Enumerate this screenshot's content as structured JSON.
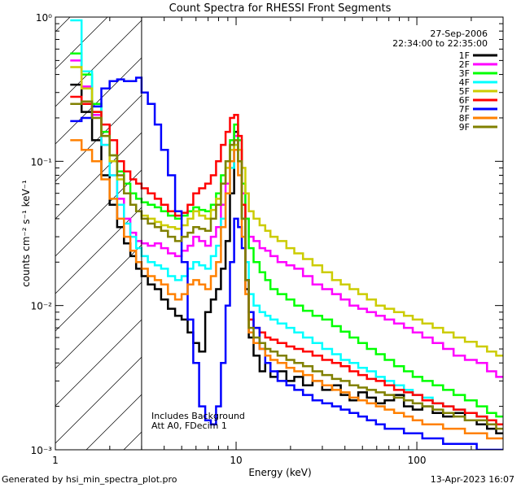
{
  "chart_data": {
    "type": "line",
    "title": "Count Spectra for RHESSI Front Segments",
    "xlabel": "Energy (keV)",
    "ylabel": "counts cm⁻² s⁻¹ keV⁻¹",
    "xscale": "log",
    "yscale": "log",
    "xlim": [
      1,
      300
    ],
    "ylim": [
      0.001,
      1
    ],
    "x_ticks": [
      "1",
      "10",
      "100"
    ],
    "y_ticks": [
      "10⁻³",
      "10⁻²",
      "10⁻¹",
      "10⁰"
    ],
    "date": "27-Sep-2006",
    "time_range": "22:34:00 to 22:35:00",
    "annotations": [
      "Includes Background",
      "Att A0, FDecim 1"
    ],
    "attenuator_region_max_keV": 3,
    "legend_position": "top-right",
    "series": [
      {
        "name": "1F",
        "color": "#000000",
        "x": [
          1.3,
          1.5,
          1.7,
          1.9,
          2.1,
          2.3,
          2.5,
          2.7,
          2.9,
          3.1,
          3.4,
          3.7,
          4.0,
          4.4,
          4.8,
          5.2,
          5.6,
          6.0,
          6.5,
          7.0,
          7.5,
          8.0,
          8.5,
          9.0,
          9.5,
          10.0,
          10.5,
          11.0,
          11.5,
          12.0,
          13.0,
          14.0,
          15.0,
          16.0,
          18.0,
          20.0,
          22.0,
          25.0,
          28.0,
          32.0,
          36.0,
          40.0,
          45.0,
          50.0,
          56.0,
          63.0,
          70.0,
          80.0,
          90.0,
          100.0,
          115.0,
          130.0,
          150.0,
          170.0,
          200.0,
          230.0,
          260.0,
          290.0
        ],
        "y": [
          0.34,
          0.22,
          0.14,
          0.08,
          0.05,
          0.035,
          0.027,
          0.022,
          0.018,
          0.016,
          0.014,
          0.013,
          0.011,
          0.0095,
          0.0085,
          0.008,
          0.0065,
          0.0055,
          0.0048,
          0.009,
          0.011,
          0.013,
          0.018,
          0.028,
          0.06,
          0.16,
          0.12,
          0.04,
          0.013,
          0.006,
          0.0045,
          0.0035,
          0.004,
          0.0032,
          0.0035,
          0.003,
          0.0032,
          0.0028,
          0.003,
          0.0026,
          0.0028,
          0.0024,
          0.0022,
          0.0025,
          0.0023,
          0.0021,
          0.0022,
          0.0024,
          0.002,
          0.0019,
          0.002,
          0.0018,
          0.0017,
          0.0018,
          0.0016,
          0.0015,
          0.0014,
          0.0013
        ]
      },
      {
        "name": "2F",
        "color": "#ff00ff",
        "x": [
          1.3,
          1.5,
          1.7,
          1.9,
          2.1,
          2.3,
          2.5,
          2.7,
          2.9,
          3.1,
          3.4,
          3.7,
          4.0,
          4.4,
          4.8,
          5.2,
          5.6,
          6.0,
          6.5,
          7.0,
          7.5,
          8.0,
          8.5,
          9.0,
          9.5,
          10.0,
          10.5,
          11.0,
          11.5,
          12.0,
          13.0,
          14.0,
          15.0,
          16.0,
          18.0,
          20.0,
          22.0,
          25.0,
          28.0,
          32.0,
          36.0,
          40.0,
          45.0,
          50.0,
          56.0,
          63.0,
          70.0,
          80.0,
          90.0,
          100.0,
          115.0,
          130.0,
          150.0,
          170.0,
          200.0,
          230.0,
          260.0,
          290.0
        ],
        "y": [
          0.5,
          0.33,
          0.21,
          0.13,
          0.08,
          0.055,
          0.04,
          0.032,
          0.028,
          0.027,
          0.026,
          0.027,
          0.025,
          0.023,
          0.022,
          0.024,
          0.026,
          0.03,
          0.028,
          0.026,
          0.03,
          0.035,
          0.05,
          0.07,
          0.1,
          0.15,
          0.12,
          0.06,
          0.04,
          0.03,
          0.028,
          0.025,
          0.024,
          0.022,
          0.02,
          0.019,
          0.018,
          0.016,
          0.014,
          0.013,
          0.012,
          0.011,
          0.01,
          0.0095,
          0.009,
          0.0085,
          0.008,
          0.0075,
          0.007,
          0.0065,
          0.006,
          0.0055,
          0.005,
          0.0045,
          0.0042,
          0.004,
          0.0035,
          0.0032
        ]
      },
      {
        "name": "3F",
        "color": "#00ff00",
        "x": [
          1.3,
          1.5,
          1.7,
          1.9,
          2.1,
          2.3,
          2.5,
          2.7,
          2.9,
          3.1,
          3.4,
          3.7,
          4.0,
          4.4,
          4.8,
          5.2,
          5.6,
          6.0,
          6.5,
          7.0,
          7.5,
          8.0,
          8.5,
          9.0,
          9.5,
          10.0,
          10.5,
          11.0,
          11.5,
          12.0,
          13.0,
          14.0,
          15.0,
          16.0,
          18.0,
          20.0,
          22.0,
          25.0,
          28.0,
          32.0,
          36.0,
          40.0,
          45.0,
          50.0,
          56.0,
          63.0,
          70.0,
          80.0,
          90.0,
          100.0,
          115.0,
          130.0,
          150.0,
          170.0,
          200.0,
          230.0,
          260.0,
          290.0
        ],
        "y": [
          0.56,
          0.4,
          0.25,
          0.16,
          0.11,
          0.085,
          0.07,
          0.06,
          0.055,
          0.052,
          0.05,
          0.048,
          0.045,
          0.042,
          0.04,
          0.042,
          0.045,
          0.048,
          0.046,
          0.045,
          0.05,
          0.06,
          0.08,
          0.1,
          0.14,
          0.18,
          0.14,
          0.07,
          0.04,
          0.025,
          0.02,
          0.017,
          0.015,
          0.013,
          0.012,
          0.011,
          0.01,
          0.0092,
          0.0085,
          0.008,
          0.0072,
          0.0066,
          0.006,
          0.0055,
          0.005,
          0.0046,
          0.0042,
          0.0038,
          0.0035,
          0.0032,
          0.003,
          0.0028,
          0.0026,
          0.0024,
          0.0022,
          0.002,
          0.0018,
          0.0017
        ]
      },
      {
        "name": "4F",
        "color": "#00ffff",
        "x": [
          1.3,
          1.5,
          1.7,
          1.9,
          2.1,
          2.3,
          2.5,
          2.7,
          2.9,
          3.1,
          3.4,
          3.7,
          4.0,
          4.4,
          4.8,
          5.2,
          5.6,
          6.0,
          6.5,
          7.0,
          7.5,
          8.0,
          8.5,
          9.0,
          9.5,
          10.0,
          10.5,
          11.0,
          11.5,
          12.0,
          13.0,
          14.0,
          15.0,
          16.0,
          18.0,
          20.0,
          22.0,
          25.0,
          28.0,
          32.0,
          36.0,
          40.0,
          45.0,
          50.0,
          56.0,
          63.0,
          70.0,
          80.0,
          90.0,
          100.0,
          115.0,
          130.0,
          150.0,
          170.0,
          200.0,
          230.0,
          260.0,
          290.0
        ],
        "y": [
          0.95,
          0.42,
          0.24,
          0.13,
          0.08,
          0.05,
          0.037,
          0.03,
          0.025,
          0.022,
          0.02,
          0.019,
          0.018,
          0.016,
          0.015,
          0.016,
          0.018,
          0.02,
          0.019,
          0.018,
          0.022,
          0.026,
          0.04,
          0.06,
          0.09,
          0.13,
          0.1,
          0.04,
          0.02,
          0.012,
          0.01,
          0.009,
          0.0085,
          0.008,
          0.0075,
          0.007,
          0.0065,
          0.006,
          0.0055,
          0.005,
          0.0046,
          0.0042,
          0.004,
          0.0037,
          0.0035,
          0.0032,
          0.003,
          0.0028,
          0.0026,
          0.0024,
          0.0023,
          0.0021,
          0.002,
          0.0019,
          0.0018,
          0.0017,
          0.0016,
          0.0015
        ]
      },
      {
        "name": "5F",
        "color": "#cccc00",
        "x": [
          1.3,
          1.5,
          1.7,
          1.9,
          2.1,
          2.3,
          2.5,
          2.7,
          2.9,
          3.1,
          3.4,
          3.7,
          4.0,
          4.4,
          4.8,
          5.2,
          5.6,
          6.0,
          6.5,
          7.0,
          7.5,
          8.0,
          8.5,
          9.0,
          9.5,
          10.0,
          10.5,
          11.0,
          11.5,
          12.0,
          13.0,
          14.0,
          15.0,
          16.0,
          18.0,
          20.0,
          22.0,
          25.0,
          28.0,
          32.0,
          36.0,
          40.0,
          45.0,
          50.0,
          56.0,
          63.0,
          70.0,
          80.0,
          90.0,
          100.0,
          115.0,
          130.0,
          150.0,
          170.0,
          200.0,
          230.0,
          260.0,
          290.0
        ],
        "y": [
          0.45,
          0.32,
          0.22,
          0.15,
          0.1,
          0.075,
          0.06,
          0.05,
          0.045,
          0.042,
          0.04,
          0.038,
          0.036,
          0.035,
          0.034,
          0.036,
          0.04,
          0.045,
          0.042,
          0.04,
          0.046,
          0.055,
          0.07,
          0.09,
          0.12,
          0.13,
          0.12,
          0.09,
          0.06,
          0.045,
          0.04,
          0.036,
          0.033,
          0.03,
          0.028,
          0.025,
          0.023,
          0.021,
          0.019,
          0.017,
          0.015,
          0.014,
          0.013,
          0.012,
          0.011,
          0.01,
          0.0095,
          0.009,
          0.0085,
          0.008,
          0.0075,
          0.007,
          0.0065,
          0.006,
          0.0056,
          0.0052,
          0.0048,
          0.0045
        ]
      },
      {
        "name": "6F",
        "color": "#ff0000",
        "x": [
          1.3,
          1.5,
          1.7,
          1.9,
          2.1,
          2.3,
          2.5,
          2.7,
          2.9,
          3.1,
          3.4,
          3.7,
          4.0,
          4.4,
          4.8,
          5.2,
          5.6,
          6.0,
          6.5,
          7.0,
          7.5,
          8.0,
          8.5,
          9.0,
          9.5,
          10.0,
          10.5,
          11.0,
          11.5,
          12.0,
          13.0,
          14.0,
          15.0,
          16.0,
          18.0,
          20.0,
          22.0,
          25.0,
          28.0,
          32.0,
          36.0,
          40.0,
          45.0,
          50.0,
          56.0,
          63.0,
          70.0,
          80.0,
          90.0,
          100.0,
          115.0,
          130.0,
          150.0,
          170.0,
          200.0,
          230.0,
          260.0,
          290.0
        ],
        "y": [
          0.28,
          0.25,
          0.22,
          0.18,
          0.14,
          0.1,
          0.085,
          0.075,
          0.07,
          0.065,
          0.06,
          0.055,
          0.05,
          0.045,
          0.042,
          0.044,
          0.05,
          0.06,
          0.065,
          0.07,
          0.08,
          0.1,
          0.13,
          0.16,
          0.2,
          0.21,
          0.15,
          0.05,
          0.015,
          0.008,
          0.007,
          0.0065,
          0.006,
          0.0058,
          0.0055,
          0.0052,
          0.005,
          0.0048,
          0.0045,
          0.0042,
          0.004,
          0.0038,
          0.0035,
          0.0033,
          0.0031,
          0.003,
          0.0028,
          0.0026,
          0.0025,
          0.0024,
          0.0022,
          0.0021,
          0.002,
          0.0019,
          0.0018,
          0.0017,
          0.0016,
          0.0015
        ]
      },
      {
        "name": "7F",
        "color": "#0000ff",
        "x": [
          1.3,
          1.5,
          1.7,
          1.9,
          2.1,
          2.3,
          2.5,
          2.7,
          2.9,
          3.1,
          3.4,
          3.7,
          4.0,
          4.4,
          4.8,
          5.2,
          5.6,
          6.0,
          6.5,
          7.0,
          7.5,
          8.0,
          8.5,
          9.0,
          9.5,
          10.0,
          10.5,
          11.0,
          11.5,
          12.0,
          13.0,
          14.0,
          15.0,
          16.0,
          18.0,
          20.0,
          22.0,
          25.0,
          28.0,
          32.0,
          36.0,
          40.0,
          45.0,
          50.0,
          56.0,
          63.0,
          70.0,
          80.0,
          90.0,
          100.0,
          115.0,
          130.0,
          150.0,
          170.0,
          200.0,
          230.0,
          260.0,
          290.0
        ],
        "y": [
          0.19,
          0.2,
          0.24,
          0.32,
          0.36,
          0.37,
          0.36,
          0.36,
          0.38,
          0.3,
          0.25,
          0.18,
          0.12,
          0.08,
          0.045,
          0.02,
          0.008,
          0.004,
          0.002,
          0.0016,
          0.0015,
          0.002,
          0.004,
          0.01,
          0.02,
          0.04,
          0.035,
          0.025,
          0.015,
          0.009,
          0.007,
          0.005,
          0.004,
          0.0035,
          0.003,
          0.0028,
          0.0026,
          0.0024,
          0.0022,
          0.0021,
          0.002,
          0.0019,
          0.0018,
          0.0017,
          0.0016,
          0.0015,
          0.0014,
          0.0014,
          0.0013,
          0.0013,
          0.0012,
          0.0012,
          0.0011,
          0.0011,
          0.0011,
          0.001,
          0.001,
          0.001
        ]
      },
      {
        "name": "8F",
        "color": "#ff8000",
        "x": [
          1.3,
          1.5,
          1.7,
          1.9,
          2.1,
          2.3,
          2.5,
          2.7,
          2.9,
          3.1,
          3.4,
          3.7,
          4.0,
          4.4,
          4.8,
          5.2,
          5.6,
          6.0,
          6.5,
          7.0,
          7.5,
          8.0,
          8.5,
          9.0,
          9.5,
          10.0,
          10.5,
          11.0,
          11.5,
          12.0,
          13.0,
          14.0,
          15.0,
          16.0,
          18.0,
          20.0,
          22.0,
          25.0,
          28.0,
          32.0,
          36.0,
          40.0,
          45.0,
          50.0,
          56.0,
          63.0,
          70.0,
          80.0,
          90.0,
          100.0,
          115.0,
          130.0,
          150.0,
          170.0,
          200.0,
          230.0,
          260.0,
          290.0
        ],
        "y": [
          0.14,
          0.12,
          0.1,
          0.075,
          0.055,
          0.04,
          0.03,
          0.024,
          0.02,
          0.018,
          0.016,
          0.015,
          0.014,
          0.012,
          0.011,
          0.012,
          0.014,
          0.015,
          0.014,
          0.013,
          0.016,
          0.02,
          0.035,
          0.06,
          0.1,
          0.12,
          0.08,
          0.03,
          0.012,
          0.0065,
          0.0055,
          0.005,
          0.0045,
          0.0042,
          0.004,
          0.0037,
          0.0035,
          0.0033,
          0.003,
          0.0028,
          0.0026,
          0.0025,
          0.0023,
          0.0022,
          0.0021,
          0.002,
          0.0019,
          0.0018,
          0.0017,
          0.0016,
          0.0015,
          0.0015,
          0.0014,
          0.0014,
          0.0013,
          0.0013,
          0.0012,
          0.0012
        ]
      },
      {
        "name": "9F",
        "color": "#808000",
        "x": [
          1.3,
          1.5,
          1.7,
          1.9,
          2.1,
          2.3,
          2.5,
          2.7,
          2.9,
          3.1,
          3.4,
          3.7,
          4.0,
          4.4,
          4.8,
          5.2,
          5.6,
          6.0,
          6.5,
          7.0,
          7.5,
          8.0,
          8.5,
          9.0,
          9.5,
          10.0,
          10.5,
          11.0,
          11.5,
          12.0,
          13.0,
          14.0,
          15.0,
          16.0,
          18.0,
          20.0,
          22.0,
          25.0,
          28.0,
          32.0,
          36.0,
          40.0,
          45.0,
          50.0,
          56.0,
          63.0,
          70.0,
          80.0,
          90.0,
          100.0,
          115.0,
          130.0,
          150.0,
          170.0,
          200.0,
          230.0,
          260.0,
          290.0
        ],
        "y": [
          0.25,
          0.26,
          0.2,
          0.15,
          0.11,
          0.08,
          0.06,
          0.05,
          0.045,
          0.04,
          0.037,
          0.035,
          0.033,
          0.03,
          0.028,
          0.03,
          0.032,
          0.035,
          0.034,
          0.033,
          0.04,
          0.05,
          0.07,
          0.1,
          0.13,
          0.14,
          0.1,
          0.04,
          0.015,
          0.007,
          0.006,
          0.0055,
          0.005,
          0.0048,
          0.0045,
          0.0042,
          0.004,
          0.0038,
          0.0035,
          0.0033,
          0.0031,
          0.003,
          0.0028,
          0.0027,
          0.0026,
          0.0025,
          0.0024,
          0.0023,
          0.0022,
          0.0021,
          0.002,
          0.0019,
          0.0018,
          0.0017,
          0.0016,
          0.0016,
          0.0015,
          0.0014
        ]
      }
    ]
  },
  "footer": {
    "left": "Generated by hsi_min_spectra_plot.pro",
    "right": "13-Apr-2023 16:07"
  }
}
